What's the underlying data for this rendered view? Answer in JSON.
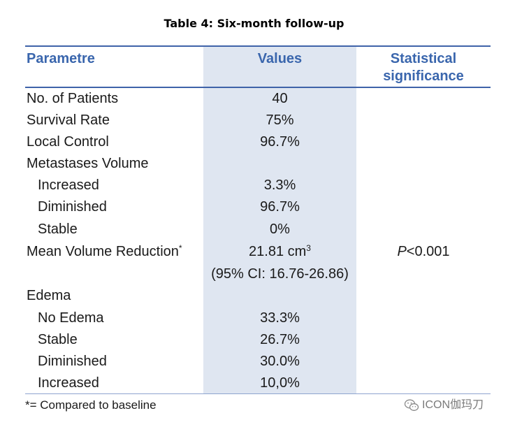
{
  "title": "Table 4: Six-month follow-up",
  "headers": {
    "parametre": "Parametre",
    "values": "Values",
    "significance_line1": "Statistical",
    "significance_line2": "significance"
  },
  "rows": [
    {
      "param": "No. of Patients",
      "value": "40"
    },
    {
      "param": "Survival Rate",
      "value": "75%"
    },
    {
      "param": "Local Control",
      "value": "96.7%"
    },
    {
      "param": "Metastases Volume",
      "value": ""
    },
    {
      "param": "Increased",
      "value": "3.3%"
    },
    {
      "param": "Diminished",
      "value": "96.7%"
    },
    {
      "param": "Stable",
      "value": "0%"
    },
    {
      "param": "Mean Volume Reduction",
      "param_sup": "*",
      "value": "21.81 cm",
      "value_sup": "3",
      "stat_italic": "P",
      "stat_rest": "<0.001"
    },
    {
      "param": "",
      "value": "(95% CI: 16.76-26.86)"
    },
    {
      "param": "Edema",
      "value": ""
    },
    {
      "param": "No Edema",
      "value": "33.3%"
    },
    {
      "param": "Stable",
      "value": "26.7%"
    },
    {
      "param": "Diminished",
      "value": "30.0%"
    },
    {
      "param": "Increased",
      "value": "10,0%"
    }
  ],
  "footnote": "*= Compared to baseline",
  "watermark": "ICON伽玛刀",
  "watermark_icon": "wechat-icon",
  "colors": {
    "header_text": "#3a66ad",
    "rule": "#3f63a9",
    "values_band": "#dfe6f1"
  }
}
